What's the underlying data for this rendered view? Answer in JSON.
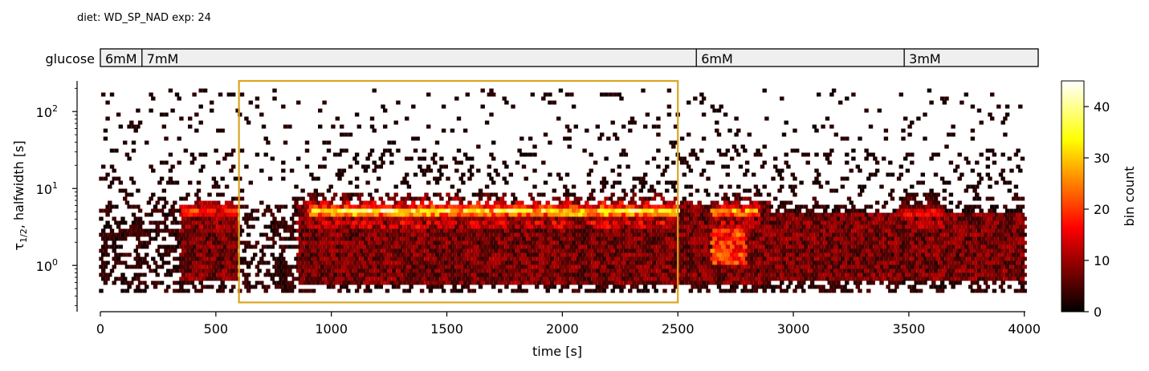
{
  "header": "diet: WD_SP_NAD  exp: 24",
  "glucose_bar": {
    "label": "glucose",
    "segments": [
      {
        "label": "6mM",
        "start": 0,
        "end": 180
      },
      {
        "label": "7mM",
        "start": 180,
        "end": 2580
      },
      {
        "label": "6mM",
        "start": 2580,
        "end": 3480
      },
      {
        "label": "3mM",
        "start": 3480,
        "end": 4060
      }
    ]
  },
  "chart_data": {
    "type": "heatmap",
    "subtype": "hexbin",
    "xlabel": "time [s]",
    "ylabel_main": "τ",
    "ylabel_sub": "1/2",
    "ylabel_rest": ", halfwidth [s]",
    "xlim": [
      0,
      4060
    ],
    "ylim": [
      0.25,
      250
    ],
    "yscale": "log",
    "xticks": [
      0,
      500,
      1000,
      1500,
      2000,
      2500,
      3000,
      3500,
      4000
    ],
    "xtick_labels": [
      "0",
      "500",
      "1000",
      "1500",
      "2000",
      "2500",
      "3000",
      "3500",
      "4000"
    ],
    "yticks": [
      1,
      10,
      100
    ],
    "ytick_base": "10",
    "ytick_exponents": [
      "0",
      "1",
      "2"
    ],
    "highlight_box": {
      "x0": 600,
      "x1": 2500,
      "y0": 0.33,
      "y1": 250,
      "color": "#DAA520"
    },
    "colorbar": {
      "label": "bin count",
      "range": [
        0,
        45
      ],
      "ticks": [
        0,
        10,
        20,
        30,
        40
      ],
      "tick_labels": [
        "0",
        "10",
        "20",
        "30",
        "40"
      ],
      "colormap": "hot"
    },
    "density_ridge": {
      "note_value_tau": 5,
      "segments": [
        {
          "x0": 350,
          "x1": 600,
          "peak": 14
        },
        {
          "x0": 900,
          "x1": 2500,
          "peak": 35
        },
        {
          "x0": 2650,
          "x1": 2850,
          "peak": 25
        },
        {
          "x0": 3450,
          "x1": 3650,
          "peak": 18
        }
      ]
    },
    "dense_regions": [
      {
        "x0": 350,
        "x1": 600,
        "tau0": 0.6,
        "tau1": 7
      },
      {
        "x0": 850,
        "x1": 2900,
        "tau0": 0.55,
        "tau1": 7
      },
      {
        "x0": 2900,
        "x1": 4060,
        "tau0": 0.6,
        "tau1": 5
      }
    ]
  }
}
